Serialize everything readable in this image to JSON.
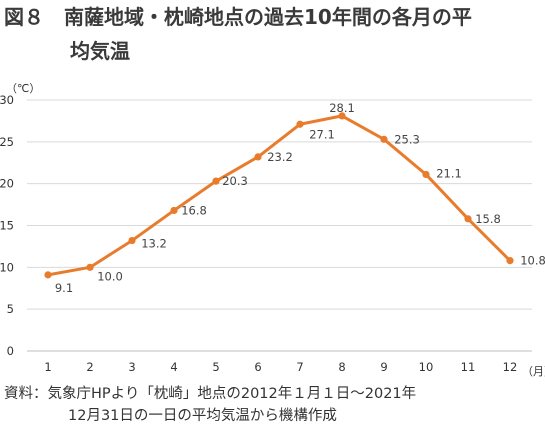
{
  "title": {
    "line1": "図８　南薩地域・枕崎地点の過去10年間の各月の平",
    "line2": "均気温"
  },
  "units": {
    "y": "（℃）",
    "x": "（月）"
  },
  "note": {
    "line1": "資料：気象庁HPより「枕崎」地点の2012年１月１日～2021年",
    "line2": "12月31日の一日の平均気温から機構作成"
  },
  "chart_data": {
    "type": "line",
    "x": [
      1,
      2,
      3,
      4,
      5,
      6,
      7,
      8,
      9,
      10,
      11,
      12
    ],
    "values": [
      9.1,
      10.0,
      13.2,
      16.8,
      20.3,
      23.2,
      27.1,
      28.1,
      25.3,
      21.1,
      15.8,
      10.8
    ],
    "data_labels": [
      "9.1",
      "10.0",
      "13.2",
      "16.8",
      "20.3",
      "23.2",
      "27.1",
      "28.1",
      "25.3",
      "21.1",
      "15.8",
      "10.8"
    ],
    "yticks": [
      0,
      5,
      10,
      15,
      20,
      25,
      30
    ],
    "ylim": [
      0,
      30
    ],
    "ylabel": "（℃）",
    "xlabel": "（月）",
    "grid": true,
    "line_color": "#e87c2c",
    "grid_color": "#d9d9d9"
  }
}
